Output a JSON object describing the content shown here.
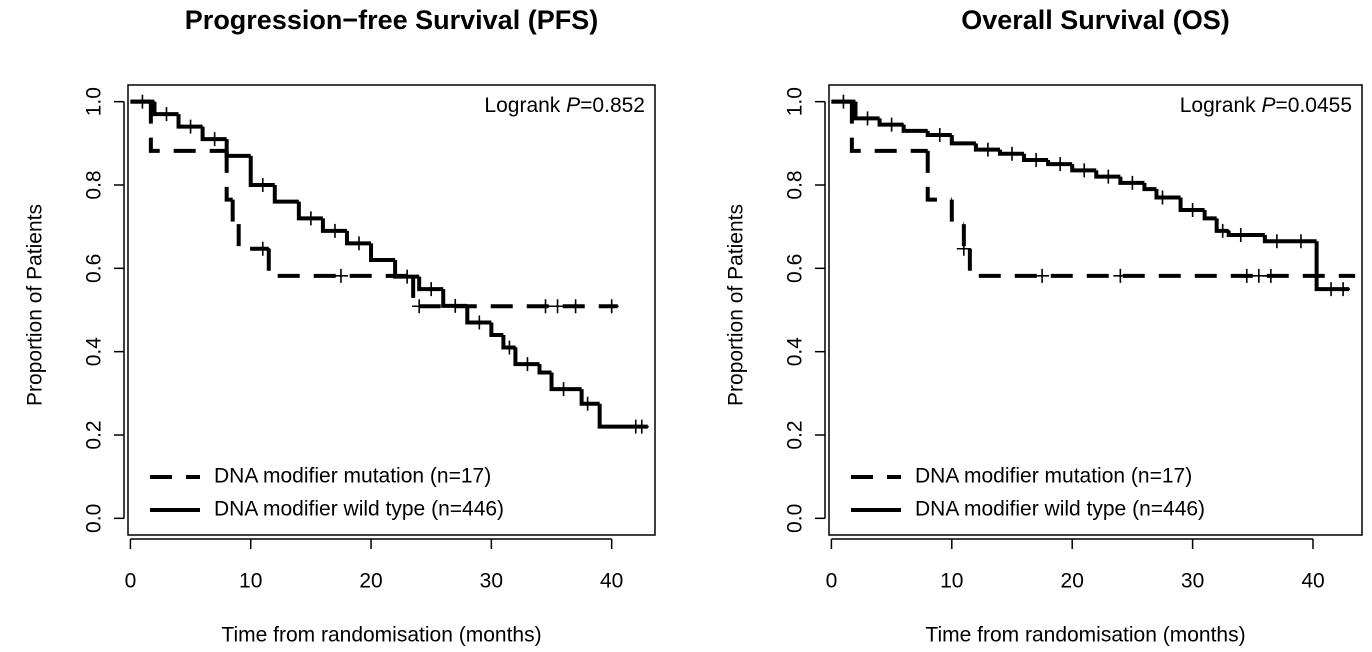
{
  "chart_data": [
    {
      "type": "step",
      "title": "Progression−free Survival (PFS)",
      "xlabel": "Time from randomisation (months)",
      "ylabel": "Proportion of Patients",
      "annotation": {
        "prefix": "Logrank ",
        "italic": "P",
        "suffix": "=0.852"
      },
      "xlim": [
        -0.2,
        43.6
      ],
      "ylim": [
        -0.04,
        1.04
      ],
      "xticks": [
        0,
        10,
        20,
        30,
        40
      ],
      "yticks": [
        {
          "value": 0,
          "label": "0.0"
        },
        0.2,
        0.4,
        0.6,
        0.8,
        {
          "value": 1,
          "label": "1.0"
        }
      ],
      "legend": "bottomleft",
      "series": [
        {
          "name": "DNA modifier mutation (n=17)",
          "color": "#000000",
          "dash": true,
          "x": [
            0,
            1.7,
            8,
            8.5,
            9,
            11.5,
            23.5,
            40.5
          ],
          "values": [
            1,
            0.882,
            0.765,
            0.706,
            0.647,
            0.582,
            0.509,
            0.509
          ],
          "censor_x": [
            11,
            17.5,
            24,
            34.5,
            35.5,
            37,
            40
          ],
          "censor_values": [
            0.647,
            0.582,
            0.509,
            0.509,
            0.509,
            0.509,
            0.509
          ]
        },
        {
          "name": "DNA modifier wild type (n=446)",
          "color": "#000000",
          "dash": false,
          "x": [
            0,
            2,
            4,
            6,
            8,
            10,
            12,
            14,
            16,
            18,
            20,
            22,
            24,
            26,
            28,
            30,
            31,
            32,
            34,
            35,
            37.5,
            39,
            43
          ],
          "values": [
            1,
            0.97,
            0.94,
            0.91,
            0.87,
            0.8,
            0.76,
            0.72,
            0.69,
            0.66,
            0.62,
            0.58,
            0.55,
            0.51,
            0.47,
            0.44,
            0.41,
            0.37,
            0.35,
            0.31,
            0.275,
            0.22,
            0.22
          ],
          "censor_x": [
            1,
            3,
            5,
            7,
            11,
            15,
            17,
            19,
            23,
            25,
            27,
            29,
            31.5,
            33,
            36,
            38,
            42,
            42.5
          ],
          "censor_values": [
            1,
            0.97,
            0.94,
            0.91,
            0.8,
            0.72,
            0.69,
            0.66,
            0.58,
            0.55,
            0.51,
            0.47,
            0.41,
            0.37,
            0.31,
            0.275,
            0.22,
            0.22
          ]
        }
      ]
    },
    {
      "type": "step",
      "title": "Overall Survival (OS)",
      "xlabel": "Time from randomisation (months)",
      "ylabel": "Proportion of Patients",
      "annotation": {
        "prefix": "Logrank ",
        "italic": "P",
        "suffix": "=0.0455"
      },
      "xlim": [
        -0.2,
        44.07
      ],
      "ylim": [
        -0.04,
        1.04
      ],
      "xticks": [
        0,
        10,
        20,
        30,
        40
      ],
      "yticks": [
        {
          "value": 0,
          "label": "0.0"
        },
        0.2,
        0.4,
        0.6,
        0.8,
        {
          "value": 1,
          "label": "1.0"
        }
      ],
      "legend": "bottomleft",
      "series": [
        {
          "name": "DNA modifier mutation (n=17)",
          "color": "#000000",
          "dash": true,
          "x": [
            0,
            1.7,
            8,
            10,
            11,
            11.5,
            43.5
          ],
          "values": [
            1,
            0.882,
            0.765,
            0.706,
            0.647,
            0.582,
            0.582
          ],
          "censor_x": [
            11,
            17.5,
            24,
            34.5,
            35.5,
            36.5
          ],
          "censor_values": [
            0.647,
            0.582,
            0.582,
            0.582,
            0.582,
            0.582
          ]
        },
        {
          "name": "DNA modifier wild type (n=446)",
          "color": "#000000",
          "dash": false,
          "x": [
            0,
            2,
            4,
            6,
            8,
            10,
            12,
            14,
            16,
            18,
            20,
            22,
            24,
            26,
            27,
            29,
            31,
            32,
            33,
            36,
            40.3,
            43
          ],
          "values": [
            1,
            0.96,
            0.945,
            0.93,
            0.92,
            0.9,
            0.885,
            0.875,
            0.86,
            0.85,
            0.835,
            0.82,
            0.805,
            0.79,
            0.77,
            0.74,
            0.72,
            0.69,
            0.68,
            0.665,
            0.55,
            0.55
          ],
          "censor_x": [
            1,
            3,
            5,
            9,
            13,
            15,
            17,
            19,
            21,
            23,
            25,
            27.5,
            30,
            32.5,
            34,
            37,
            39,
            41.5,
            42.5
          ],
          "censor_values": [
            1,
            0.96,
            0.945,
            0.92,
            0.885,
            0.875,
            0.86,
            0.85,
            0.835,
            0.82,
            0.805,
            0.77,
            0.74,
            0.69,
            0.68,
            0.665,
            0.665,
            0.55,
            0.55
          ]
        }
      ]
    }
  ]
}
